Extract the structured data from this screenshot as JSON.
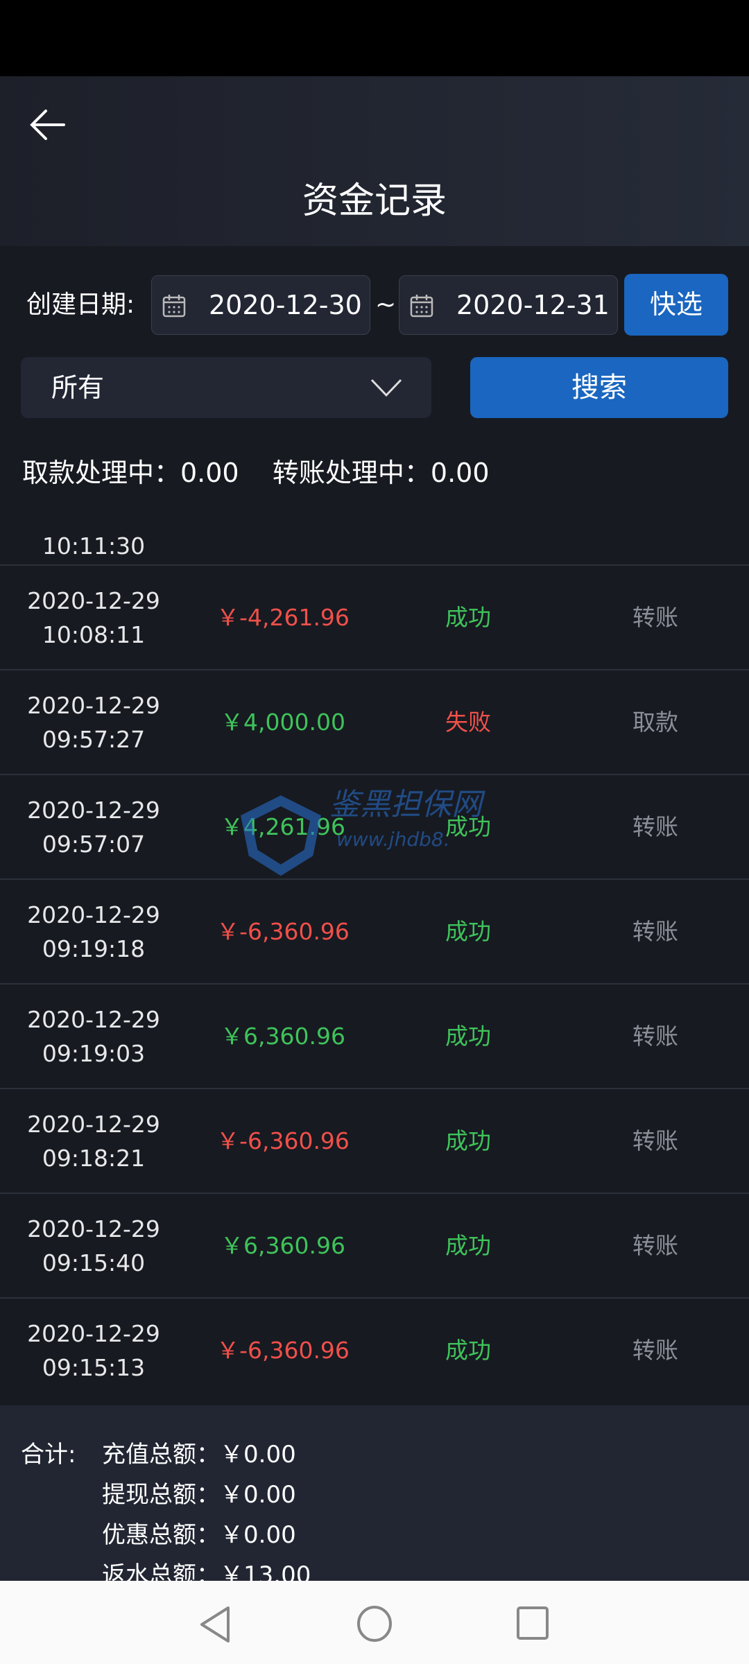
{
  "header": {
    "title": "资金记录"
  },
  "filter": {
    "date_label": "创建日期:",
    "start_date": "2020-12-30",
    "end_date": "2020-12-31",
    "separator": "~",
    "quick_label": "快选",
    "type_selected": "所有",
    "search_label": "搜索"
  },
  "processing": {
    "text": "取款处理中：0.00    转账处理中：0.00"
  },
  "colors": {
    "positive": "#3fc35a",
    "negative": "#f0504a",
    "accent": "#1a66c0"
  },
  "records": [
    {
      "date": "",
      "time": "10:11:30",
      "amount": "",
      "status": "",
      "type": ""
    },
    {
      "date": "2020-12-29",
      "time": "10:08:11",
      "amount": "￥-4,261.96",
      "sign": "negative",
      "status": "成功",
      "status_kind": "success",
      "type": "转账"
    },
    {
      "date": "2020-12-29",
      "time": "09:57:27",
      "amount": "￥4,000.00",
      "sign": "positive",
      "status": "失败",
      "status_kind": "fail",
      "type": "取款"
    },
    {
      "date": "2020-12-29",
      "time": "09:57:07",
      "amount": "￥4,261.96",
      "sign": "positive",
      "status": "成功",
      "status_kind": "success",
      "type": "转账"
    },
    {
      "date": "2020-12-29",
      "time": "09:19:18",
      "amount": "￥-6,360.96",
      "sign": "negative",
      "status": "成功",
      "status_kind": "success",
      "type": "转账"
    },
    {
      "date": "2020-12-29",
      "time": "09:19:03",
      "amount": "￥6,360.96",
      "sign": "positive",
      "status": "成功",
      "status_kind": "success",
      "type": "转账"
    },
    {
      "date": "2020-12-29",
      "time": "09:18:21",
      "amount": "￥-6,360.96",
      "sign": "negative",
      "status": "成功",
      "status_kind": "success",
      "type": "转账"
    },
    {
      "date": "2020-12-29",
      "time": "09:15:40",
      "amount": "￥6,360.96",
      "sign": "positive",
      "status": "成功",
      "status_kind": "success",
      "type": "转账"
    },
    {
      "date": "2020-12-29",
      "time": "09:15:13",
      "amount": "￥-6,360.96",
      "sign": "negative",
      "status": "成功",
      "status_kind": "success",
      "type": "转账"
    }
  ],
  "summary": {
    "label": "合计:",
    "items": [
      {
        "text": "充值总额：￥0.00"
      },
      {
        "text": "提现总额：￥0.00"
      },
      {
        "text": "优惠总额：￥0.00"
      },
      {
        "text": "返水总额：￥13.00"
      }
    ]
  },
  "watermark": {
    "name": "鉴黑担保网",
    "url": "www.jhdb8..."
  }
}
